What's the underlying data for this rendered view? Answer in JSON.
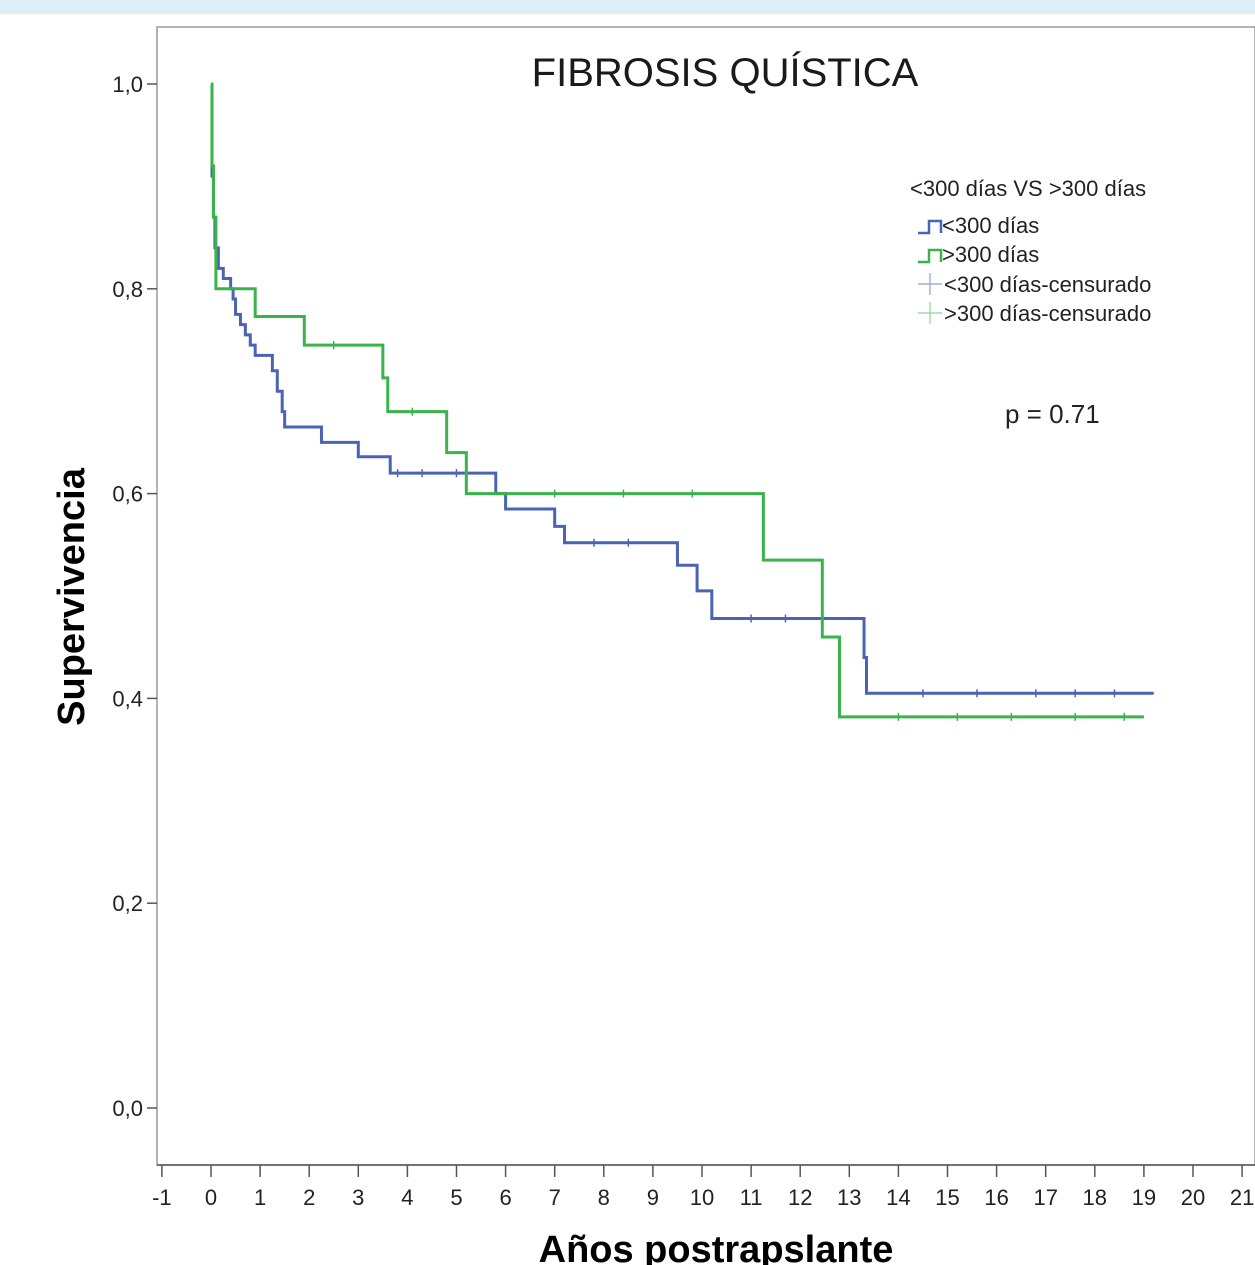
{
  "chart_data": {
    "type": "line",
    "subtype": "kaplan-meier",
    "title": "FIBROSIS QUÍSTICA",
    "xlabel": "Años postrapslante",
    "ylabel": "Supervivencia",
    "xlim": [
      -1,
      21
    ],
    "ylim": [
      0,
      1.0
    ],
    "x_ticks": [
      "-1",
      "0",
      "1",
      "2",
      "3",
      "4",
      "5",
      "6",
      "7",
      "8",
      "9",
      "10",
      "11",
      "12",
      "13",
      "14",
      "15",
      "16",
      "17",
      "18",
      "19",
      "20",
      "21"
    ],
    "y_ticks": [
      "0,0",
      "0,2",
      "0,4",
      "0,6",
      "0,8",
      "1,0"
    ],
    "y_tick_values": [
      0,
      0.2,
      0.4,
      0.6,
      0.8,
      1.0
    ],
    "legend": {
      "title": "<300 días VS >300 días",
      "entries": [
        "<300 días",
        ">300 días",
        "<300 días-censurado",
        ">300 días-censurado"
      ],
      "placement": "top-right"
    },
    "annotation": "p = 0.71",
    "grid": false,
    "series": [
      {
        "name": "<300 días",
        "color": "#4a64b4",
        "steps": [
          [
            0,
            1.0
          ],
          [
            0.02,
            0.91
          ],
          [
            0.05,
            0.87
          ],
          [
            0.08,
            0.84
          ],
          [
            0.15,
            0.82
          ],
          [
            0.25,
            0.81
          ],
          [
            0.4,
            0.8
          ],
          [
            0.45,
            0.79
          ],
          [
            0.5,
            0.775
          ],
          [
            0.6,
            0.765
          ],
          [
            0.7,
            0.755
          ],
          [
            0.8,
            0.745
          ],
          [
            0.9,
            0.735
          ],
          [
            1.25,
            0.72
          ],
          [
            1.35,
            0.7
          ],
          [
            1.45,
            0.68
          ],
          [
            1.5,
            0.665
          ],
          [
            2.25,
            0.65
          ],
          [
            3.0,
            0.636
          ],
          [
            3.65,
            0.62
          ],
          [
            5.8,
            0.6
          ],
          [
            6.0,
            0.585
          ],
          [
            7.0,
            0.568
          ],
          [
            7.2,
            0.552
          ],
          [
            9.5,
            0.53
          ],
          [
            9.9,
            0.505
          ],
          [
            10.2,
            0.478
          ],
          [
            13.3,
            0.44
          ],
          [
            13.35,
            0.405
          ],
          [
            19.2,
            0.405
          ]
        ],
        "censored": [
          [
            3.8,
            0.62
          ],
          [
            4.3,
            0.62
          ],
          [
            5.0,
            0.62
          ],
          [
            7.8,
            0.552
          ],
          [
            8.5,
            0.552
          ],
          [
            11.0,
            0.478
          ],
          [
            11.7,
            0.478
          ],
          [
            14.5,
            0.405
          ],
          [
            15.6,
            0.405
          ],
          [
            16.8,
            0.405
          ],
          [
            17.6,
            0.405
          ],
          [
            18.4,
            0.405
          ]
        ]
      },
      {
        "name": ">300 días",
        "color": "#3ab44a",
        "steps": [
          [
            0,
            1.0
          ],
          [
            0.02,
            0.92
          ],
          [
            0.05,
            0.87
          ],
          [
            0.1,
            0.8
          ],
          [
            0.9,
            0.773
          ],
          [
            1.9,
            0.745
          ],
          [
            3.5,
            0.713
          ],
          [
            3.6,
            0.68
          ],
          [
            4.8,
            0.64
          ],
          [
            5.2,
            0.6
          ],
          [
            11.25,
            0.535
          ],
          [
            12.45,
            0.46
          ],
          [
            12.8,
            0.382
          ],
          [
            19.0,
            0.382
          ]
        ],
        "censored": [
          [
            2.5,
            0.745
          ],
          [
            4.1,
            0.68
          ],
          [
            7.0,
            0.6
          ],
          [
            8.4,
            0.6
          ],
          [
            9.8,
            0.6
          ],
          [
            14.0,
            0.382
          ],
          [
            15.2,
            0.382
          ],
          [
            16.3,
            0.382
          ],
          [
            17.6,
            0.382
          ],
          [
            18.6,
            0.382
          ]
        ]
      }
    ]
  }
}
